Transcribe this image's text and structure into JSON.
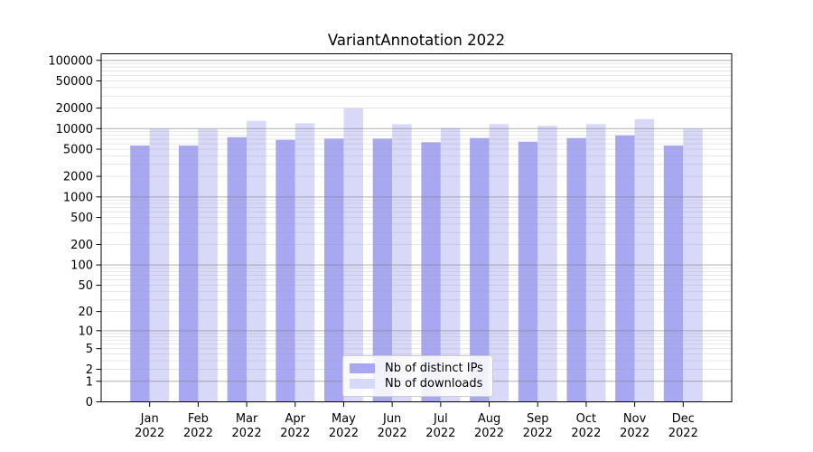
{
  "chart_data": {
    "type": "bar",
    "title": "VariantAnnotation 2022",
    "months": [
      "Jan",
      "Feb",
      "Mar",
      "Apr",
      "May",
      "Jun",
      "Jul",
      "Aug",
      "Sep",
      "Oct",
      "Nov",
      "Dec"
    ],
    "year_label": "2022",
    "series": [
      {
        "name": "Nb of distinct IPs",
        "color": "#a8a8f2",
        "values": [
          5650,
          5650,
          7500,
          6850,
          7150,
          7150,
          6330,
          7280,
          6440,
          7280,
          7950,
          5650
        ]
      },
      {
        "name": "Nb of downloads",
        "color": "#d8d8f8",
        "values": [
          9900,
          9900,
          13000,
          12000,
          19900,
          11600,
          10200,
          11650,
          11000,
          11650,
          13800,
          9900
        ]
      }
    ],
    "y_axis": {
      "scale": "log1p",
      "tick_values": [
        100000,
        50000,
        20000,
        10000,
        5000,
        2000,
        1000,
        500,
        200,
        100,
        50,
        20,
        10,
        5,
        2,
        1,
        0
      ],
      "ylim_top": 123000
    },
    "grid": {
      "which": "both",
      "drawn_over_bars": true,
      "major_color": "#808080",
      "major_opacity": 0.62,
      "minor_color": "#989898",
      "minor_opacity": 0.3
    },
    "legend": {
      "position": "lower center"
    },
    "axis_color": "#000000",
    "text_color": "#000000",
    "background": "#ffffff"
  }
}
